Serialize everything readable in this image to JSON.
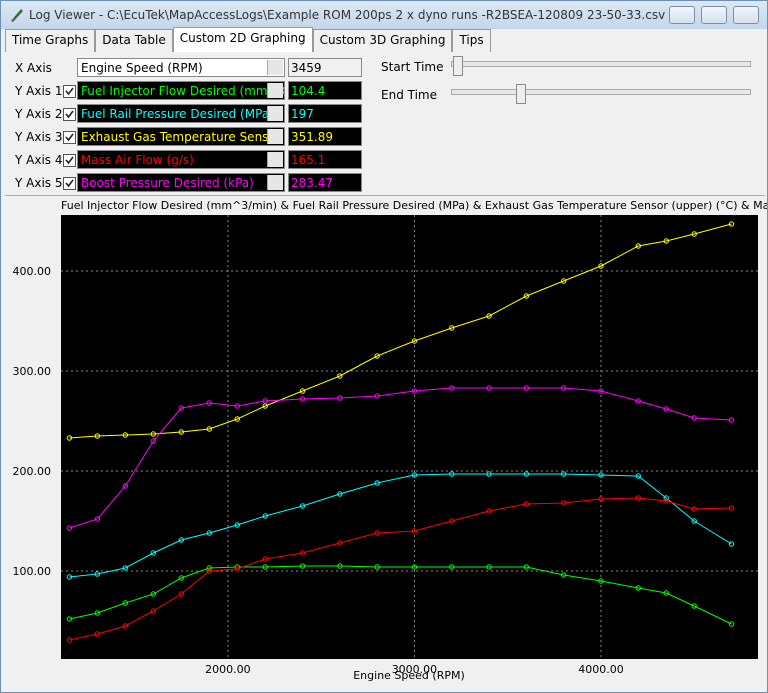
{
  "window": {
    "title": "Log Viewer - C:\\EcuTek\\MapAccessLogs\\Example ROM 200ps  2 x dyno runs  -R2BSEA-120809 23-50-33.csv"
  },
  "tabs": [
    "Time Graphs",
    "Data Table",
    "Custom 2D Graphing",
    "Custom 3D Graphing",
    "Tips"
  ],
  "controls": {
    "x_axis": {
      "label": "X Axis",
      "readout": "3459"
    },
    "y_axes": [
      {
        "label": "Y Axis 1",
        "readout": "104.4"
      },
      {
        "label": "Y Axis 2",
        "readout": "197"
      },
      {
        "label": "Y Axis 3",
        "readout": "351.89"
      },
      {
        "label": "Y Axis 4",
        "readout": "165.1"
      },
      {
        "label": "Y Axis 5",
        "readout": "283.47"
      }
    ],
    "start_time": "Start Time",
    "end_time": "End Time"
  },
  "chart_data": {
    "type": "line",
    "title": "Fuel Injector Flow Desired (mm^3/min) & Fuel Rail Pressure Desired (MPa) & Exhaust Gas Temperature Sensor (upper) (°C) & Mass Air Flow (g/s) &",
    "x_label": "Engine Speed (RPM)",
    "x": [
      1150,
      1300,
      1450,
      1600,
      1750,
      1900,
      2050,
      2200,
      2400,
      2600,
      2800,
      3000,
      3200,
      3400,
      3600,
      3800,
      4000,
      4200,
      4350,
      4500,
      4700
    ],
    "xlim": [
      1105,
      4842
    ],
    "xticks": [
      {
        "value": 2000,
        "label": "2000.00"
      },
      {
        "value": 3000,
        "label": "3000.00"
      },
      {
        "value": 4000,
        "label": "4000.00"
      }
    ],
    "ylim": [
      12,
      456
    ],
    "yticks": [
      {
        "value": 100,
        "label": "100.00"
      },
      {
        "value": 200,
        "label": "200.00"
      },
      {
        "value": 300,
        "label": "300.00"
      },
      {
        "value": 400,
        "label": "400.00"
      }
    ],
    "grid": true,
    "series": [
      {
        "name": "Fuel Injector Flow Desired (mm^3/min)",
        "color": "#00ff00",
        "values": [
          52,
          58,
          68,
          77,
          93,
          103,
          104,
          104,
          105,
          105,
          104,
          104,
          104,
          104,
          104,
          96,
          90,
          83,
          78,
          65,
          47
        ]
      },
      {
        "name": "Fuel Rail Pressure Desired (MPa)",
        "color": "#00ffff",
        "values": [
          94,
          97,
          103,
          118,
          131,
          138,
          146,
          155,
          165,
          177,
          188,
          196,
          197,
          197,
          197,
          197,
          196,
          195,
          173,
          150,
          127
        ]
      },
      {
        "name": "Exhaust Gas Temperature Sensor (upper)",
        "color": "#ffff00",
        "values": [
          233,
          235,
          236,
          237,
          239,
          242,
          252,
          265,
          280,
          295,
          315,
          330,
          343,
          355,
          375,
          390,
          405,
          425,
          430,
          437,
          447
        ]
      },
      {
        "name": "Mass Air Flow (g/s)",
        "color": "#ff0000",
        "values": [
          31,
          37,
          45,
          60,
          77,
          100,
          102,
          112,
          118,
          128,
          138,
          140,
          150,
          160,
          167,
          168,
          172,
          173,
          170,
          162,
          163
        ]
      },
      {
        "name": "Boost Pressure Desired (kPa)",
        "color": "#ff00ff",
        "values": [
          143,
          152,
          185,
          230,
          263,
          268,
          265,
          270,
          272,
          273,
          275,
          280,
          283,
          283,
          283,
          283,
          280,
          270,
          262,
          253,
          251
        ]
      }
    ]
  }
}
